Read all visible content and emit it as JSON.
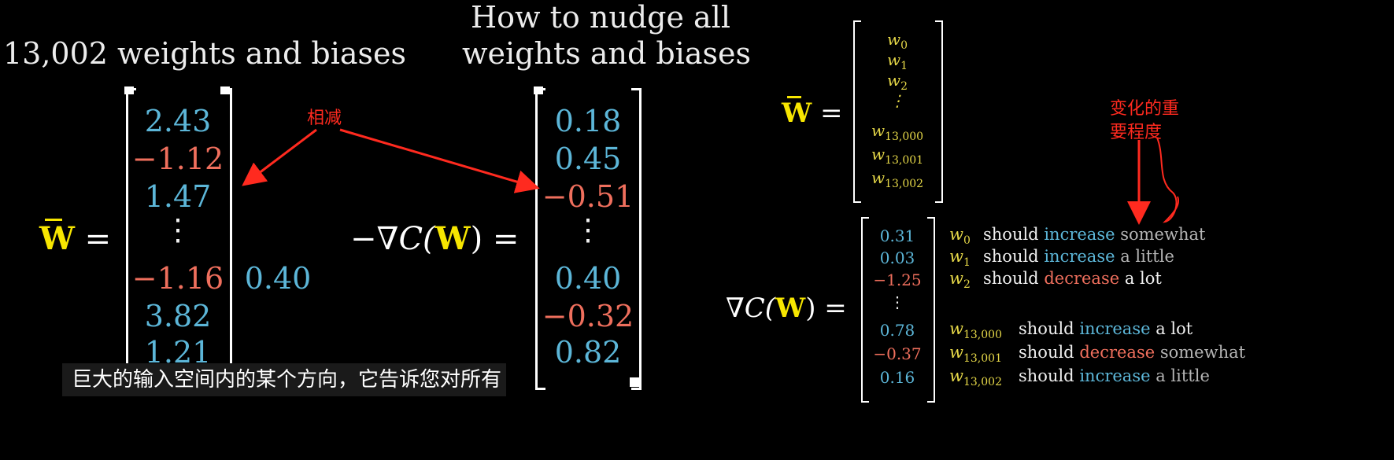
{
  "left_panel": {
    "title_weights": "13,002 weights and biases",
    "title_nudge_line1": "How to nudge all",
    "title_nudge_line2": "weights and biases",
    "w_label": "W",
    "equals": "=",
    "w_values": [
      {
        "text": "2.43",
        "color": "blue"
      },
      {
        "text": "−1.12",
        "color": "red"
      },
      {
        "text": "1.47",
        "color": "blue"
      },
      {
        "text": "⋮",
        "color": "white"
      },
      {
        "text": "−1.16",
        "color": "red"
      },
      {
        "text": "3.82",
        "color": "blue"
      },
      {
        "text": "1.21",
        "color": "blue"
      }
    ],
    "stray_value": "0.40",
    "grad_prefix": "−∇C(",
    "grad_suffix": ") =",
    "grad_values": [
      {
        "text": "0.18",
        "color": "blue"
      },
      {
        "text": "0.45",
        "color": "blue"
      },
      {
        "text": "−0.51",
        "color": "red"
      },
      {
        "text": "⋮",
        "color": "white"
      },
      {
        "text": "0.40",
        "color": "blue"
      },
      {
        "text": "−0.32",
        "color": "red"
      },
      {
        "text": "0.82",
        "color": "blue"
      }
    ],
    "annotation_subtract": "相减"
  },
  "right_panel": {
    "w_vector_entries": [
      {
        "base": "w",
        "sub": "0"
      },
      {
        "base": "w",
        "sub": "1"
      },
      {
        "base": "w",
        "sub": "2"
      },
      {
        "base": "⋮",
        "sub": ""
      },
      {
        "base": "w",
        "sub": "13,000"
      },
      {
        "base": "w",
        "sub": "13,001"
      },
      {
        "base": "w",
        "sub": "13,002"
      }
    ],
    "grad_prefix": "∇C(",
    "grad_suffix": ") =",
    "grad_rows": [
      {
        "value": "0.31",
        "value_color": "blue",
        "w_sub": "0",
        "should": "should",
        "dir": "increase",
        "dir_color": "blue",
        "amount": "somewhat"
      },
      {
        "value": "0.03",
        "value_color": "blue",
        "w_sub": "1",
        "should": "should",
        "dir": "increase",
        "dir_color": "blue",
        "amount": "a little"
      },
      {
        "value": "−1.25",
        "value_color": "red",
        "w_sub": "2",
        "should": "should",
        "dir": "decrease",
        "dir_color": "red",
        "amount": "a lot"
      },
      {
        "value": "⋮",
        "value_color": "white",
        "w_sub": "",
        "should": "",
        "dir": "",
        "dir_color": "white",
        "amount": ""
      },
      {
        "value": "0.78",
        "value_color": "blue",
        "w_sub": "13,000",
        "should": "should",
        "dir": "increase",
        "dir_color": "blue",
        "amount": "a lot"
      },
      {
        "value": "−0.37",
        "value_color": "red",
        "w_sub": "13,001",
        "should": "should",
        "dir": "decrease",
        "dir_color": "red",
        "amount": "somewhat"
      },
      {
        "value": "0.16",
        "value_color": "blue",
        "w_sub": "13,002",
        "should": "should",
        "dir": "increase",
        "dir_color": "blue",
        "amount": "a little"
      }
    ],
    "annotation_importance_line1": "变化的重",
    "annotation_importance_line2": "要程度"
  },
  "subtitle": "巨大的输入空间内的某个方向，它告诉您对所有",
  "colors": {
    "blue": "#5cb6d8",
    "red": "#ef6f5d",
    "yellow": "#f7e600",
    "annotation": "#ff2a1f"
  }
}
